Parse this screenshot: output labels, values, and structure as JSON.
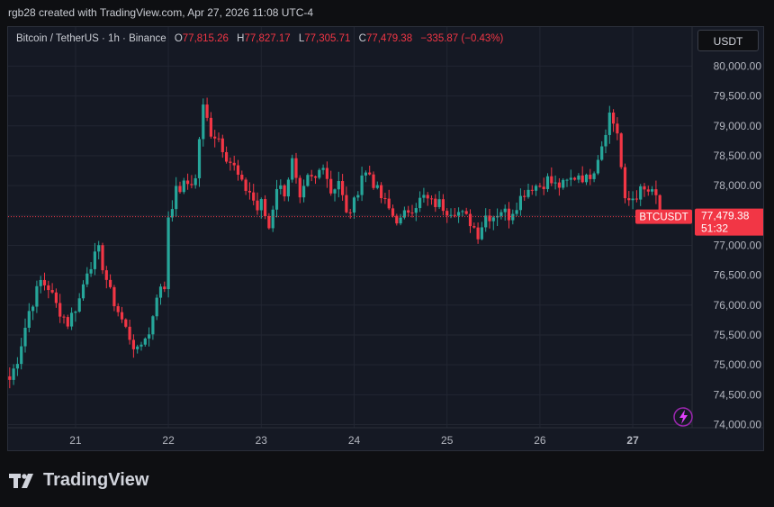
{
  "credit": "rgb28 created with TradingView.com, Apr 27, 2026 11:08 UTC-4",
  "legend": {
    "symbol": "Bitcoin / TetherUS · 1h · Binance",
    "o_label": "O",
    "o_value": "77,815.26",
    "h_label": "H",
    "h_value": "77,827.17",
    "l_label": "L",
    "l_value": "77,305.71",
    "c_label": "C",
    "c_value": "77,479.38",
    "change": "−335.87 (−0.43%)"
  },
  "currency_button": "USDT",
  "brand": "TradingView",
  "colors": {
    "up": "#26a69a",
    "down": "#f23645",
    "background": "#151924",
    "grid": "#222632"
  },
  "icons": [
    "tradingview-logo-icon",
    "lightning-icon"
  ],
  "chart_data": {
    "type": "candlestick",
    "symbol_tag": "BTCUSDT",
    "last_price_label": "77,479.38",
    "countdown": "51:32",
    "last_price": 77479.38,
    "ylim": [
      74000,
      80200
    ],
    "y_ticks": [
      80000,
      79500,
      79000,
      78500,
      78000,
      77500,
      77000,
      76500,
      76000,
      75500,
      75000,
      74500,
      74000
    ],
    "y_tick_labels": [
      "80,000.00",
      "79,500.00",
      "79,000.00",
      "78,500.00",
      "78,000.00",
      "77,500.00",
      "77,000.00",
      "76,500.00",
      "76,000.00",
      "75,500.00",
      "75,000.00",
      "74,500.00",
      "74,000.00"
    ],
    "x_tick_labels": [
      "21",
      "22",
      "23",
      "24",
      "25",
      "26",
      "27"
    ],
    "x_tick_positions_hours": [
      17,
      41,
      65,
      89,
      113,
      137,
      161
    ],
    "grid": true,
    "interval": "1h",
    "path_points_hours": [
      0,
      2,
      5,
      8,
      10,
      12,
      15,
      18,
      20,
      23,
      26,
      28,
      30,
      33,
      35,
      36,
      38,
      40,
      41,
      43,
      45,
      48,
      49,
      50,
      52,
      54,
      56,
      58,
      60,
      62,
      64,
      65,
      67,
      69,
      71,
      73,
      75,
      77,
      79,
      81,
      83,
      85,
      87,
      89,
      91,
      93,
      95,
      97,
      99,
      101,
      103,
      105,
      107,
      109,
      111,
      113,
      115,
      117,
      119,
      121,
      123,
      125,
      127,
      129,
      131,
      133,
      135,
      137,
      139,
      141,
      143,
      145,
      147,
      149,
      151,
      153,
      155,
      157,
      159,
      161,
      163,
      165,
      167,
      168
    ],
    "path_points_price": [
      74750,
      75100,
      75900,
      76400,
      76300,
      76000,
      75700,
      76100,
      76600,
      76900,
      76200,
      75900,
      75600,
      75200,
      75500,
      75500,
      76200,
      76300,
      77500,
      77900,
      78000,
      78100,
      78800,
      79300,
      78900,
      78800,
      78500,
      78300,
      78000,
      77900,
      77600,
      77700,
      77300,
      78000,
      77900,
      78400,
      77700,
      78100,
      78100,
      78400,
      77900,
      78100,
      77500,
      77700,
      78200,
      78200,
      77900,
      77700,
      77500,
      77400,
      77600,
      77700,
      77800,
      77700,
      77700,
      77600,
      77600,
      77500,
      77400,
      77200,
      77500,
      77500,
      77600,
      77500,
      77700,
      77900,
      78000,
      78000,
      78100,
      78000,
      78000,
      78100,
      78200,
      78100,
      78300,
      78700,
      79200,
      78900,
      77700,
      77800,
      77900,
      77900,
      77800,
      77479
    ]
  }
}
